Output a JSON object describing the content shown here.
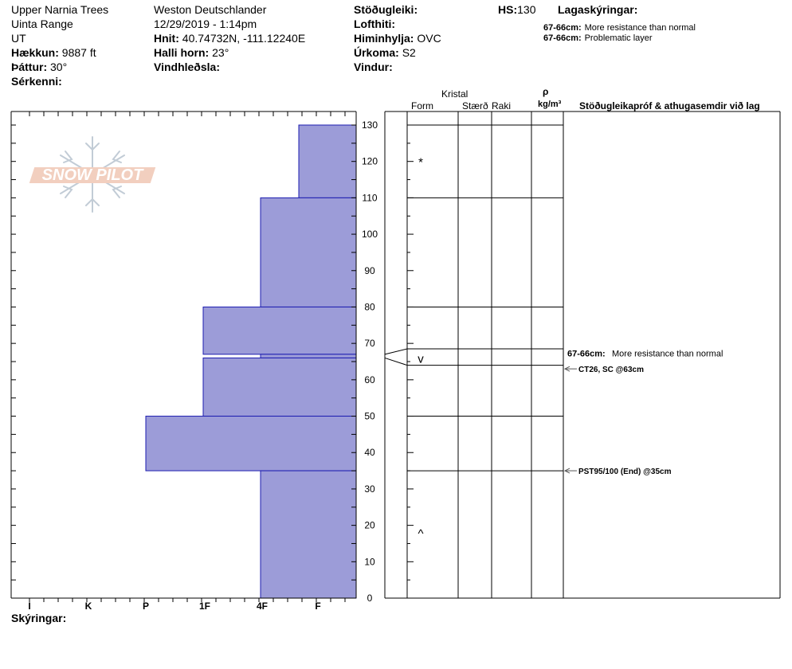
{
  "header": {
    "location": "Upper Narnia Trees",
    "range": "Uinta Range",
    "state": "UT",
    "elevation_label": "Hækkun:",
    "elevation_value": "9887 ft",
    "aspect_label": "Þáttur:",
    "aspect_value": "30°",
    "features_label": "Sérkenni:",
    "observer": "Weston Deutschlander",
    "datetime": "12/29/2019 - 1:14pm",
    "coords_label": "Hnit:",
    "coords_value": "40.74732N, -111.12240E",
    "slope_label": "Halli horn:",
    "slope_value": "23°",
    "wind_loading_label": "Vindhleðsla:",
    "stability_label": "Stöðugleiki:",
    "air_temp_label": "Lofthiti:",
    "sky_label": "Himinhylja:",
    "sky_value": "OVC",
    "precip_label": "Úrkoma:",
    "precip_value": "S2",
    "wind_label": "Vindur:",
    "hs_label": "HS:",
    "hs_value": "130",
    "layer_notes_label": "Lagaskýringar:",
    "layer_notes": [
      {
        "range": "67-66cm:",
        "text": "More resistance than normal"
      },
      {
        "range": "67-66cm:",
        "text": "Problematic layer"
      }
    ]
  },
  "logo": {
    "text": "SNOW PILOT"
  },
  "columns": {
    "crystal": "Kristal",
    "form": "Form",
    "size": "Stærð",
    "moisture": "Raki",
    "rho": "ρ",
    "density_unit": "kg/m³",
    "stability_tests": "Stöðugleikapróf & athugasemdir við lag"
  },
  "footer": {
    "comments_label": "Skýringar:"
  },
  "colors": {
    "bar_fill": "#9c9cd8",
    "bar_stroke": "#1c1cb0",
    "test_arrow": "#555555"
  },
  "chart_data": {
    "type": "bar",
    "orientation": "horizontal",
    "title": "",
    "xlabel": "",
    "ylabel": "",
    "y_unit": "cm",
    "ylim": [
      0,
      130
    ],
    "y_ticks": [
      0,
      10,
      20,
      30,
      40,
      50,
      60,
      70,
      80,
      90,
      100,
      110,
      120,
      130
    ],
    "hardness_scale": [
      "I",
      "K",
      "P",
      "1F",
      "4F",
      "F"
    ],
    "hardness_scale_values": [
      6,
      5,
      4,
      3,
      2,
      1
    ],
    "layers": [
      {
        "top": 130,
        "bottom": 110,
        "hardness": "F",
        "hardness_value": 1
      },
      {
        "top": 110,
        "bottom": 80,
        "hardness": "4F",
        "hardness_value": 2
      },
      {
        "top": 80,
        "bottom": 67,
        "hardness": "1F",
        "hardness_value": 3
      },
      {
        "top": 67,
        "bottom": 66,
        "hardness": "4F",
        "hardness_value": 2
      },
      {
        "top": 66,
        "bottom": 50,
        "hardness": "1F",
        "hardness_value": 3
      },
      {
        "top": 50,
        "bottom": 35,
        "hardness": "P",
        "hardness_value": 4
      },
      {
        "top": 35,
        "bottom": 0,
        "hardness": "4F",
        "hardness_value": 2
      }
    ],
    "layer_boundaries": [
      130,
      110,
      80,
      68.5,
      64,
      50,
      35
    ],
    "crystal_forms": [
      {
        "depth": 120,
        "symbol": "*"
      },
      {
        "depth": 66,
        "symbol": "v"
      },
      {
        "depth": 18,
        "symbol": "^"
      }
    ],
    "layer_annotation": {
      "depth": 66,
      "range": "67-66cm:",
      "text": "More resistance than normal"
    },
    "stability_tests": [
      {
        "depth": 63,
        "text": "CT26, SC @63cm"
      },
      {
        "depth": 35,
        "text": "PST95/100 (End) @35cm"
      }
    ]
  }
}
